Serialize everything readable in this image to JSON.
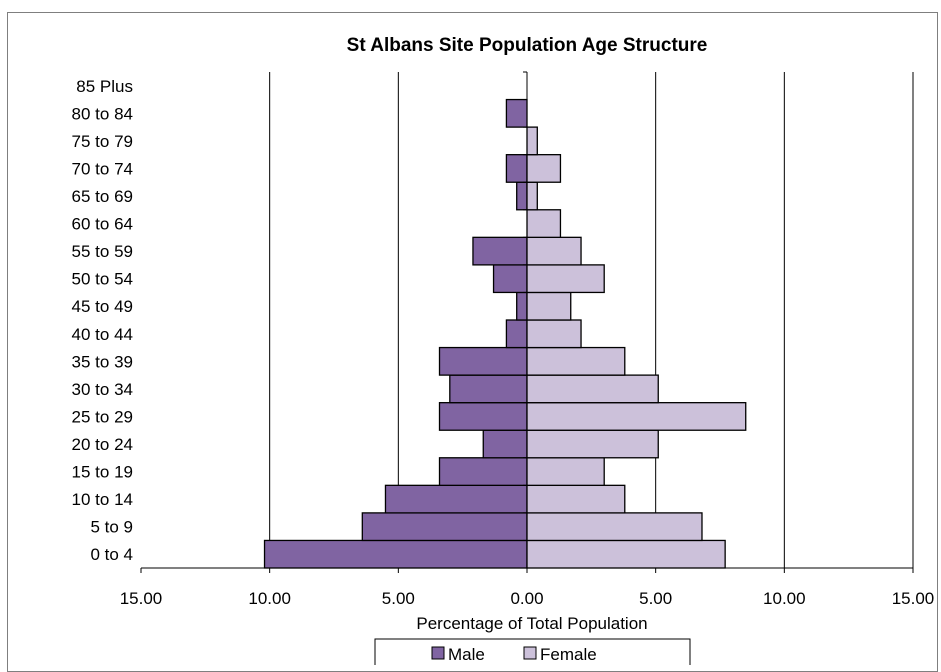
{
  "chart_data": {
    "type": "bar",
    "orientation": "horizontal",
    "title": "St Albans Site Population Age Structure",
    "xlabel": "Percentage of Total Population",
    "ylabel": "",
    "xlim": [
      -15,
      15
    ],
    "x_ticks": [
      "15.00",
      "10.00",
      "5.00",
      "0.00",
      "5.00",
      "10.00",
      "15.00"
    ],
    "grid": "vertical-major",
    "legend_position": "bottom",
    "categories": [
      "0 to 4",
      "5 to 9",
      "10 to 14",
      "15 to 19",
      "20 to 24",
      "25 to 29",
      "30 to 34",
      "35 to 39",
      "40 to 44",
      "45 to 49",
      "50 to 54",
      "55 to 59",
      "60 to 64",
      "65 to 69",
      "70 to 74",
      "75 to 79",
      "80 to 84",
      "85 Plus"
    ],
    "series": [
      {
        "name": "Male",
        "color": "#8064a2",
        "values": [
          -10.2,
          -6.4,
          -5.5,
          -3.4,
          -1.7,
          -3.4,
          -3.0,
          -3.4,
          -0.8,
          -0.4,
          -1.3,
          -2.1,
          0,
          -0.4,
          -0.8,
          0,
          -0.8,
          0
        ]
      },
      {
        "name": "Female",
        "color": "#ccc1da",
        "values": [
          7.7,
          6.8,
          3.8,
          3.0,
          5.1,
          8.5,
          5.1,
          3.8,
          2.1,
          1.7,
          3.0,
          2.1,
          1.3,
          0.4,
          1.3,
          0.4,
          0,
          0
        ]
      }
    ]
  }
}
